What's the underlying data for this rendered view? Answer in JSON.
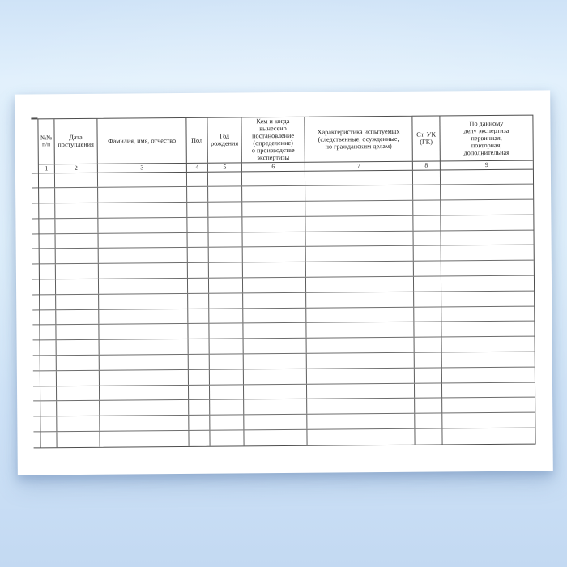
{
  "document": {
    "kind": "blank-registry-form",
    "language": "ru"
  },
  "table": {
    "columns": [
      {
        "num": "1",
        "header": "№№\nп/п"
      },
      {
        "num": "2",
        "header": "Дата\nпоступления"
      },
      {
        "num": "3",
        "header": "Фамилия, имя, отчество"
      },
      {
        "num": "4",
        "header": "Пол"
      },
      {
        "num": "5",
        "header": "Год\nрождения"
      },
      {
        "num": "6",
        "header": "Кем и когда\nвынесено\nпостановление\n(определение)\nо производстве\nэкспертизы"
      },
      {
        "num": "7",
        "header": "Характеристика испытуемых\n(следственные, осужденные,\nпо гражданским делам)"
      },
      {
        "num": "8",
        "header": "Ст. УК\n(ГК)"
      },
      {
        "num": "9",
        "header": "По данному\nделу экспертиза\nпервичная,\nповторная,\nдополнительная"
      }
    ],
    "body_row_count": 18
  },
  "colors": {
    "background_top": "#cfe3f7",
    "background_bottom": "#c3d9f2",
    "paper": "#ffffff",
    "line_dark": "#4d4d4d",
    "line_mid": "#5e5e5e",
    "line_light": "#6d6d6d"
  }
}
